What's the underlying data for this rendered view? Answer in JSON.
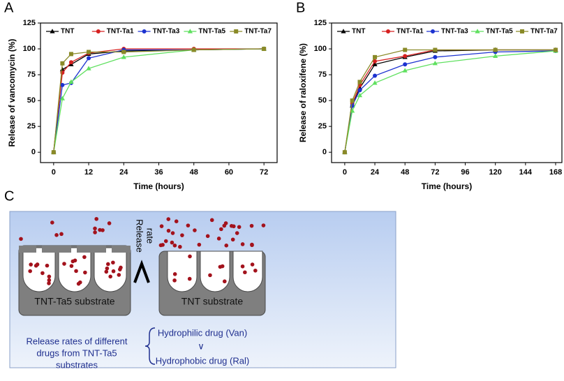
{
  "panels": [
    "A",
    "B",
    "C"
  ],
  "chart_data": [
    {
      "type": "line",
      "xlabel": "Time (hours)",
      "ylabel": "Release of vancomycin (%)",
      "x": [
        0,
        3,
        6,
        12,
        24,
        48,
        72
      ],
      "xlim": [
        -4.5,
        76.5
      ],
      "xticks": [
        0,
        12,
        24,
        36,
        48,
        60,
        72
      ],
      "ylim": [
        -10,
        125
      ],
      "yticks": [
        0,
        25,
        50,
        75,
        100,
        125
      ],
      "legend": "top",
      "series": [
        {
          "name": "TNT",
          "color": "#000000",
          "marker": "triangle",
          "values": [
            0,
            80,
            85,
            95,
            98,
            99,
            100
          ]
        },
        {
          "name": "TNT-Ta1",
          "color": "#d62020",
          "marker": "circle",
          "values": [
            0,
            77,
            87,
            96,
            100,
            100,
            100
          ]
        },
        {
          "name": "TNT-Ta3",
          "color": "#1c32d0",
          "marker": "circle",
          "values": [
            0,
            65,
            67,
            91,
            99,
            99,
            100
          ]
        },
        {
          "name": "TNT-Ta5",
          "color": "#5fe05f",
          "marker": "triangle",
          "values": [
            0,
            52,
            68,
            81,
            92,
            99,
            100
          ]
        },
        {
          "name": "TNT-Ta7",
          "color": "#8a8a28",
          "marker": "square",
          "values": [
            0,
            86,
            95,
            97,
            97,
            99,
            100
          ]
        }
      ]
    },
    {
      "type": "line",
      "xlabel": "Time (hours)",
      "ylabel": "Release of raloxifene (%)",
      "x": [
        0,
        6,
        12,
        24,
        48,
        72,
        120,
        168
      ],
      "xlim": [
        -10.5,
        173
      ],
      "xticks": [
        0,
        24,
        48,
        72,
        96,
        120,
        144,
        168
      ],
      "ylim": [
        -10,
        125
      ],
      "yticks": [
        0,
        25,
        50,
        75,
        100,
        125
      ],
      "legend": "top",
      "series": [
        {
          "name": "TNT",
          "color": "#000000",
          "marker": "triangle",
          "values": [
            0,
            45,
            62,
            85,
            92,
            98,
            99,
            99
          ]
        },
        {
          "name": "TNT-Ta1",
          "color": "#d62020",
          "marker": "circle",
          "values": [
            0,
            47,
            65,
            88,
            93,
            99,
            99,
            99
          ]
        },
        {
          "name": "TNT-Ta3",
          "color": "#1c32d0",
          "marker": "circle",
          "values": [
            0,
            45,
            60,
            74,
            85,
            92,
            97,
            98
          ]
        },
        {
          "name": "TNT-Ta5",
          "color": "#5fe05f",
          "marker": "triangle",
          "values": [
            0,
            40,
            55,
            67,
            79,
            86,
            93,
            98
          ]
        },
        {
          "name": "TNT-Ta7",
          "color": "#8a8a28",
          "marker": "square",
          "values": [
            0,
            50,
            68,
            92,
            99,
            99,
            99,
            99
          ]
        }
      ]
    }
  ],
  "diagram": {
    "release_rate": [
      "Release",
      "rate"
    ],
    "left_substrate": "TNT-Ta5 substrate",
    "right_substrate": "TNT substrate",
    "note": [
      "Release rates of different",
      "drugs  from TNT-Ta5",
      "substrates"
    ],
    "drug_top": "Hydrophilic drug (Van)",
    "comparison": "∨",
    "drug_bottom": "Hydrophobic drug (Ral)"
  }
}
